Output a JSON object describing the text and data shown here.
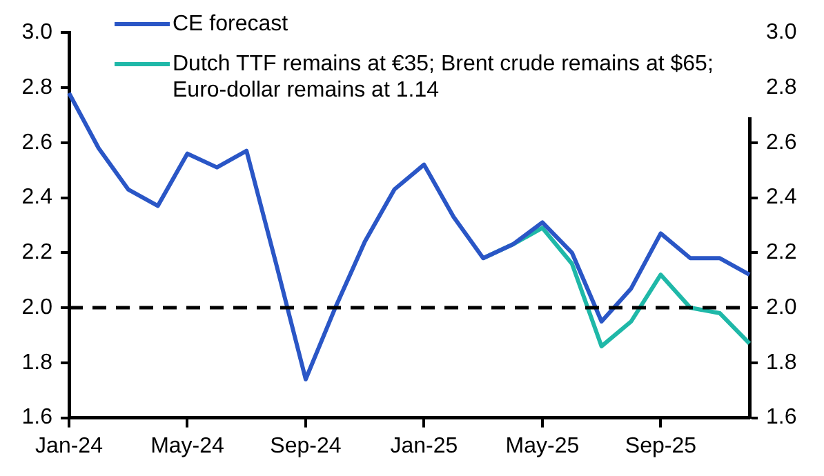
{
  "chart_data": {
    "type": "line",
    "categories": [
      "Jan-24",
      null,
      null,
      null,
      "May-24",
      null,
      null,
      null,
      "Sep-24",
      null,
      null,
      null,
      "Jan-25",
      null,
      null,
      null,
      "May-25",
      null,
      null,
      null,
      "Sep-25",
      null,
      null,
      null
    ],
    "series": [
      {
        "name": "CE forecast",
        "color": "#2a56c6",
        "values": [
          2.78,
          2.58,
          2.43,
          2.37,
          2.56,
          2.51,
          2.57,
          2.16,
          1.74,
          2.0,
          2.24,
          2.43,
          2.52,
          2.33,
          2.18,
          2.23,
          2.31,
          2.2,
          1.95,
          2.07,
          2.27,
          2.18,
          2.18,
          2.12
        ]
      },
      {
        "name": "Dutch TTF remains at €35; Brent crude remains at $65; Euro-dollar remains at 1.14",
        "color": "#1fb8a8",
        "values": [
          null,
          null,
          null,
          null,
          null,
          null,
          null,
          null,
          null,
          null,
          null,
          null,
          null,
          null,
          2.18,
          2.23,
          2.29,
          2.16,
          1.86,
          1.95,
          2.12,
          2.0,
          1.98,
          1.87
        ]
      }
    ],
    "ylim": [
      1.6,
      3.0
    ],
    "yticks": [
      {
        "value": 1.6,
        "label": "1.6"
      },
      {
        "value": 1.8,
        "label": "1.8"
      },
      {
        "value": 2.0,
        "label": "2.0"
      },
      {
        "value": 2.2,
        "label": "2.2"
      },
      {
        "value": 2.4,
        "label": "2.4"
      },
      {
        "value": 2.6,
        "label": "2.6"
      },
      {
        "value": 2.8,
        "label": "2.8"
      },
      {
        "value": 3.0,
        "label": "3.0"
      }
    ],
    "y2lim": [
      1.6,
      3.0
    ],
    "y2ticks": [
      {
        "value": 1.6,
        "label": "1.6"
      },
      {
        "value": 1.8,
        "label": "1.8"
      },
      {
        "value": 2.0,
        "label": "2.0"
      },
      {
        "value": 2.2,
        "label": "2.2"
      },
      {
        "value": 2.4,
        "label": "2.4"
      },
      {
        "value": 2.6,
        "label": "2.6"
      },
      {
        "value": 2.8,
        "label": "2.8"
      },
      {
        "value": 3.0,
        "label": "3.0"
      }
    ],
    "ref_lines": [
      {
        "axis": "y",
        "value": 2.0,
        "color": "#000000",
        "line_style": "dashed"
      }
    ],
    "grid": false,
    "legend": "top left",
    "marker": "none",
    "line_style": "solid"
  }
}
